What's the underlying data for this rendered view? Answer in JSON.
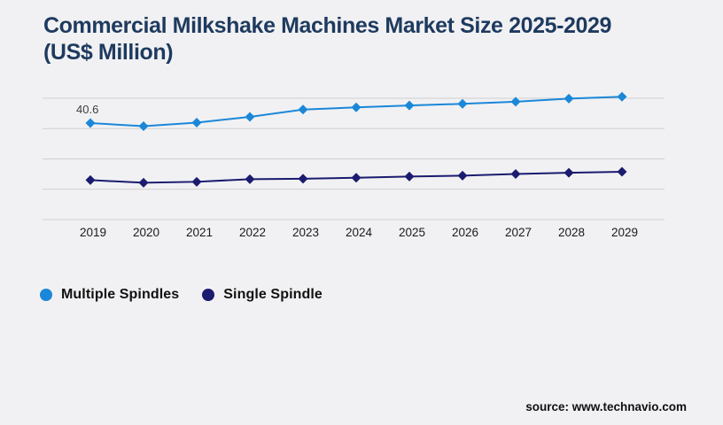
{
  "header": {
    "title_line1": "Commercial Milkshake Machines Market Size 2025-2029",
    "title_line2": "(US$ Million)"
  },
  "footer": {
    "source": "source: www.technavio.com"
  },
  "colors": {
    "background": "#f1f1f3",
    "title": "#1e3a5f",
    "gridline": "#cfcfd2",
    "tick_label": "#1a1a1a",
    "point_label": "#3d3d3d",
    "multiple_spindles": "#1b87d8",
    "single_spindle": "#1b1b70"
  },
  "chart_data": {
    "type": "line",
    "title": "Commercial Milkshake Machines Market Size 2025-2029 (US$ Million)",
    "categories": [
      "2019",
      "2020",
      "2021",
      "2022",
      "2023",
      "2024",
      "2025",
      "2026",
      "2027",
      "2028",
      "2029"
    ],
    "series": [
      {
        "name": "Multiple Spindles",
        "color": "#1b87d8",
        "marker": "diamond",
        "first_point_label": "40.6",
        "values": [
          40.6,
          39.3,
          40.8,
          43.2,
          46.3,
          47.2,
          48.0,
          48.7,
          49.6,
          50.9,
          51.7
        ]
      },
      {
        "name": "Single Spindle",
        "color": "#1b1b70",
        "marker": "diamond",
        "values": [
          16.6,
          15.5,
          15.9,
          17.0,
          17.2,
          17.6,
          18.1,
          18.5,
          19.2,
          19.7,
          20.1
        ]
      }
    ],
    "xlabel": "",
    "ylabel": "",
    "ylim": [
      0,
      55
    ],
    "grid": "horizontal",
    "gridline_count": 5,
    "y_axis_labels_visible": false,
    "legend_position": "bottom-left",
    "legend": [
      "Multiple Spindles",
      "Single Spindle"
    ]
  }
}
